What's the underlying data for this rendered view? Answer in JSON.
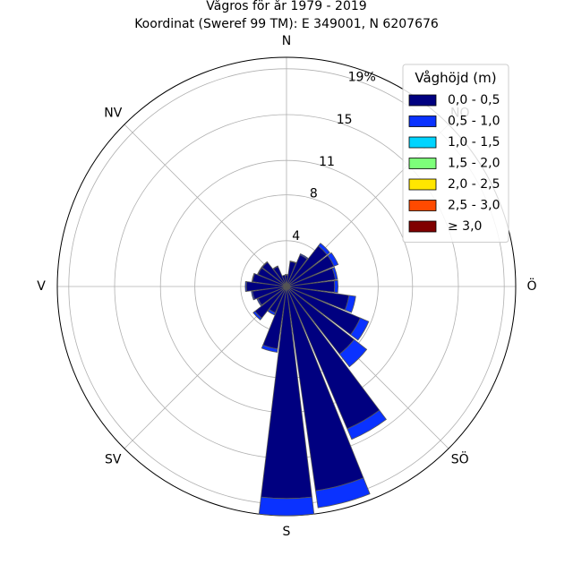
{
  "chart_data": {
    "type": "windrose",
    "title": "Vågros för år 1979 - 2019",
    "subtitle": "Koordinat (Sweref 99 TM): E 349001, N 6207676",
    "direction_labels": [
      "N",
      "NO",
      "Ö",
      "SÖ",
      "S",
      "SV",
      "V",
      "NV"
    ],
    "ring_labels": [
      "4",
      "8",
      "11",
      "15",
      "19%"
    ],
    "ring_values": [
      4,
      8,
      11,
      15,
      19
    ],
    "rmax": 20,
    "sector_width_deg": 15,
    "legend": {
      "title": "Våghöjd (m)",
      "placement": "top-right"
    },
    "series": [
      {
        "name": "0,0 - 0,5",
        "color": "#000080"
      },
      {
        "name": "0,5 - 1,0",
        "color": "#0a32ff"
      },
      {
        "name": "1,0 - 1,5",
        "color": "#00d4ff"
      },
      {
        "name": "1,5 - 2,0",
        "color": "#7dff7a"
      },
      {
        "name": "2,0 - 2,5",
        "color": "#ffe600"
      },
      {
        "name": "2,5 - 3,0",
        "color": "#ff4a00"
      },
      {
        "name": "≥ 3,0",
        "color": "#800000"
      }
    ],
    "directions_deg": [
      0,
      15,
      30,
      45,
      60,
      75,
      90,
      105,
      120,
      135,
      150,
      165,
      180,
      195,
      210,
      225,
      240,
      255,
      270,
      285,
      300,
      315,
      330,
      345
    ],
    "values": [
      [
        1.0,
        2.2,
        3.0,
        4.5,
        4.5,
        4.3,
        4.2,
        5.5,
        7.0,
        7.5,
        13.5,
        18.0,
        18.5,
        5.5,
        2.5,
        3.5,
        2.7,
        3.0,
        3.5,
        3.0,
        2.7,
        2.7,
        1.9,
        1.0
      ],
      [
        0.05,
        0.05,
        0.1,
        0.3,
        0.4,
        0.2,
        0.3,
        0.6,
        0.8,
        1.4,
        1.0,
        1.5,
        1.5,
        0.3,
        0.2,
        0.2,
        0.1,
        0.1,
        0.1,
        0.05,
        0.05,
        0.05,
        0.05,
        0.0
      ],
      [
        0,
        0,
        0,
        0,
        0,
        0,
        0,
        0,
        0,
        0,
        0,
        0,
        0,
        0,
        0,
        0,
        0,
        0,
        0,
        0,
        0,
        0,
        0,
        0
      ],
      [
        0,
        0,
        0,
        0,
        0,
        0,
        0,
        0,
        0,
        0,
        0,
        0,
        0,
        0,
        0,
        0,
        0,
        0,
        0,
        0,
        0,
        0,
        0,
        0
      ],
      [
        0,
        0,
        0,
        0,
        0,
        0,
        0,
        0,
        0,
        0,
        0,
        0,
        0,
        0,
        0,
        0,
        0,
        0,
        0,
        0,
        0,
        0,
        0,
        0
      ],
      [
        0,
        0,
        0,
        0,
        0,
        0,
        0,
        0,
        0,
        0,
        0,
        0,
        0,
        0,
        0,
        0,
        0,
        0,
        0,
        0,
        0,
        0,
        0,
        0
      ],
      [
        0,
        0,
        0,
        0,
        0,
        0,
        0,
        0,
        0,
        0,
        0,
        0,
        0,
        0,
        0,
        0,
        0,
        0,
        0,
        0,
        0,
        0,
        0,
        0
      ]
    ]
  }
}
